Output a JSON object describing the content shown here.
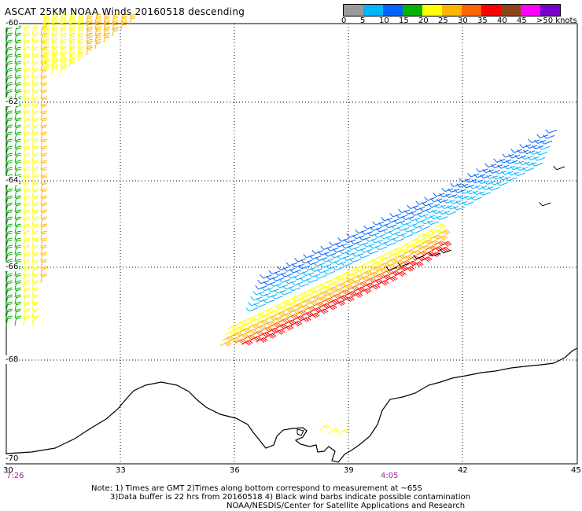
{
  "title": "ASCAT 25KM NOAA Winds 20160518 descending",
  "colorbar": {
    "colors": [
      "#505050",
      "#9a9a9a",
      "#00b4ff",
      "#0064ff",
      "#00b400",
      "#ffff00",
      "#ffb400",
      "#ff6400",
      "#ff0000",
      "#8c4614",
      "#ff00ff",
      "#7800c8"
    ],
    "labels": [
      "0",
      "5",
      "10",
      "15",
      "20",
      "25",
      "30",
      "35",
      "40",
      "45",
      ">50 knots"
    ]
  },
  "axes": {
    "lat_labels": [
      "-60",
      "-62",
      "-64",
      "-66",
      "-68",
      "-70"
    ],
    "lon_labels": [
      "30",
      "33",
      "36",
      "39",
      "42",
      "45"
    ]
  },
  "times": [
    "7:26",
    "4:05"
  ],
  "notes": [
    "Note: 1) Times are GMT 2)Times along bottom correspond to measurement at ~65S",
    "3)Data buffer is 22 hrs from 20160518 4) Black wind barbs indicate possible contamination",
    "NOAA/NESDIS/Center for Satellite Applications and Research"
  ]
}
